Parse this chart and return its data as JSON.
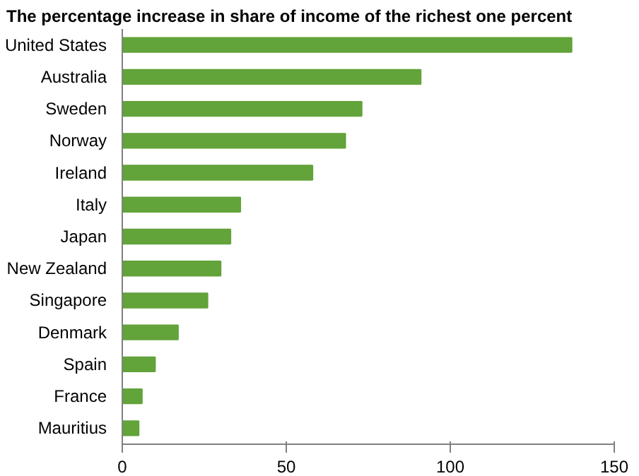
{
  "chart_data": {
    "type": "bar",
    "orientation": "horizontal",
    "title": "The percentage increase in share of income of the richest one percent",
    "categories": [
      "United States",
      "Australia",
      "Sweden",
      "Norway",
      "Ireland",
      "Italy",
      "Japan",
      "New Zealand",
      "Singapore",
      "Denmark",
      "Spain",
      "France",
      "Mauritius"
    ],
    "values": [
      137,
      91,
      73,
      68,
      58,
      36,
      33,
      30,
      26,
      17,
      10,
      6,
      5
    ],
    "color": "#62a33a",
    "xlim": [
      0,
      150
    ],
    "xticks": [
      0,
      50,
      100,
      150
    ],
    "grid": false
  }
}
